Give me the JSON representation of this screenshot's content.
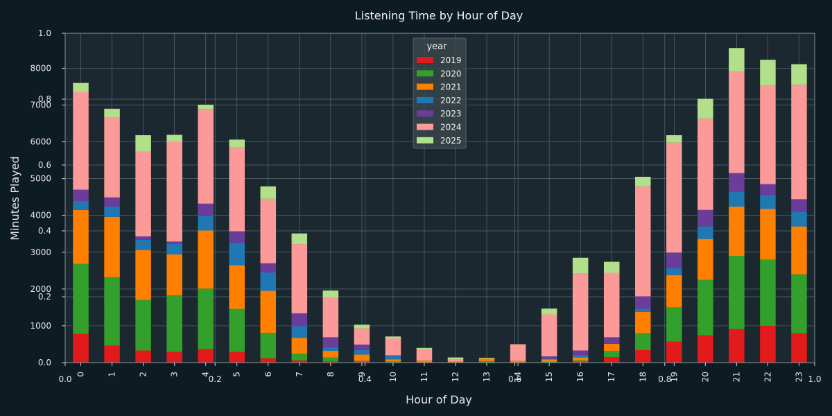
{
  "chart_data": {
    "type": "bar",
    "stacked": true,
    "title": "Listening Time by Hour of Day",
    "xlabel": "Hour of Day",
    "ylabel": "Minutes Played",
    "ylim": [
      0,
      8950
    ],
    "y_ticks": [
      0,
      1000,
      2000,
      3000,
      4000,
      5000,
      6000,
      7000,
      8000
    ],
    "y_tick_labels": [
      "0.0",
      "1000",
      "2000",
      "3000",
      "4000",
      "5000",
      "6000",
      "7000",
      "8000"
    ],
    "overlay_axis_ticks": [
      "0.0",
      "0.2",
      "0.4",
      "0.6",
      "0.8",
      "1.0"
    ],
    "grid": true,
    "legend": {
      "title": "year",
      "position": "top-center"
    },
    "categories": [
      "0",
      "1",
      "2",
      "3",
      "4",
      "5",
      "6",
      "7",
      "8",
      "9",
      "10",
      "11",
      "12",
      "13",
      "14",
      "15",
      "16",
      "17",
      "18",
      "19",
      "20",
      "21",
      "22",
      "23"
    ],
    "series": [
      {
        "name": "2019",
        "color": "#e31a1c",
        "values": [
          780,
          460,
          330,
          290,
          370,
          290,
          120,
          60,
          30,
          20,
          0,
          0,
          0,
          0,
          0,
          0,
          20,
          150,
          340,
          570,
          740,
          910,
          1000,
          800
        ]
      },
      {
        "name": "2020",
        "color": "#33a02c",
        "values": [
          1900,
          1860,
          1370,
          1540,
          1640,
          1170,
          690,
          180,
          110,
          30,
          30,
          0,
          0,
          40,
          0,
          20,
          40,
          170,
          460,
          930,
          1510,
          1990,
          1800,
          1600
        ]
      },
      {
        "name": "2021",
        "color": "#ff7f00",
        "values": [
          1470,
          1640,
          1360,
          1110,
          1580,
          1190,
          1140,
          430,
          180,
          170,
          60,
          60,
          30,
          70,
          50,
          70,
          80,
          190,
          580,
          880,
          1110,
          1340,
          1380,
          1300
        ]
      },
      {
        "name": "2022",
        "color": "#1f78b4",
        "values": [
          240,
          280,
          280,
          290,
          400,
          600,
          500,
          320,
          100,
          120,
          110,
          0,
          0,
          0,
          0,
          20,
          70,
          0,
          80,
          190,
          340,
          410,
          380,
          400
        ]
      },
      {
        "name": "2023",
        "color": "#6a3d9a",
        "values": [
          310,
          250,
          90,
          60,
          330,
          320,
          250,
          350,
          270,
          150,
          0,
          0,
          0,
          0,
          0,
          60,
          120,
          180,
          340,
          420,
          450,
          500,
          290,
          340
        ]
      },
      {
        "name": "2024",
        "color": "#fb9a99",
        "values": [
          2650,
          2180,
          2300,
          2710,
          2570,
          2290,
          1750,
          1880,
          1070,
          440,
          460,
          300,
          50,
          0,
          450,
          1140,
          2100,
          1750,
          2990,
          2990,
          2480,
          2750,
          2680,
          3110
        ]
      },
      {
        "name": "2025",
        "color": "#b2df8a",
        "values": [
          250,
          230,
          450,
          190,
          120,
          200,
          340,
          290,
          200,
          100,
          50,
          40,
          60,
          20,
          0,
          160,
          420,
          300,
          260,
          200,
          540,
          650,
          700,
          560
        ]
      }
    ]
  }
}
